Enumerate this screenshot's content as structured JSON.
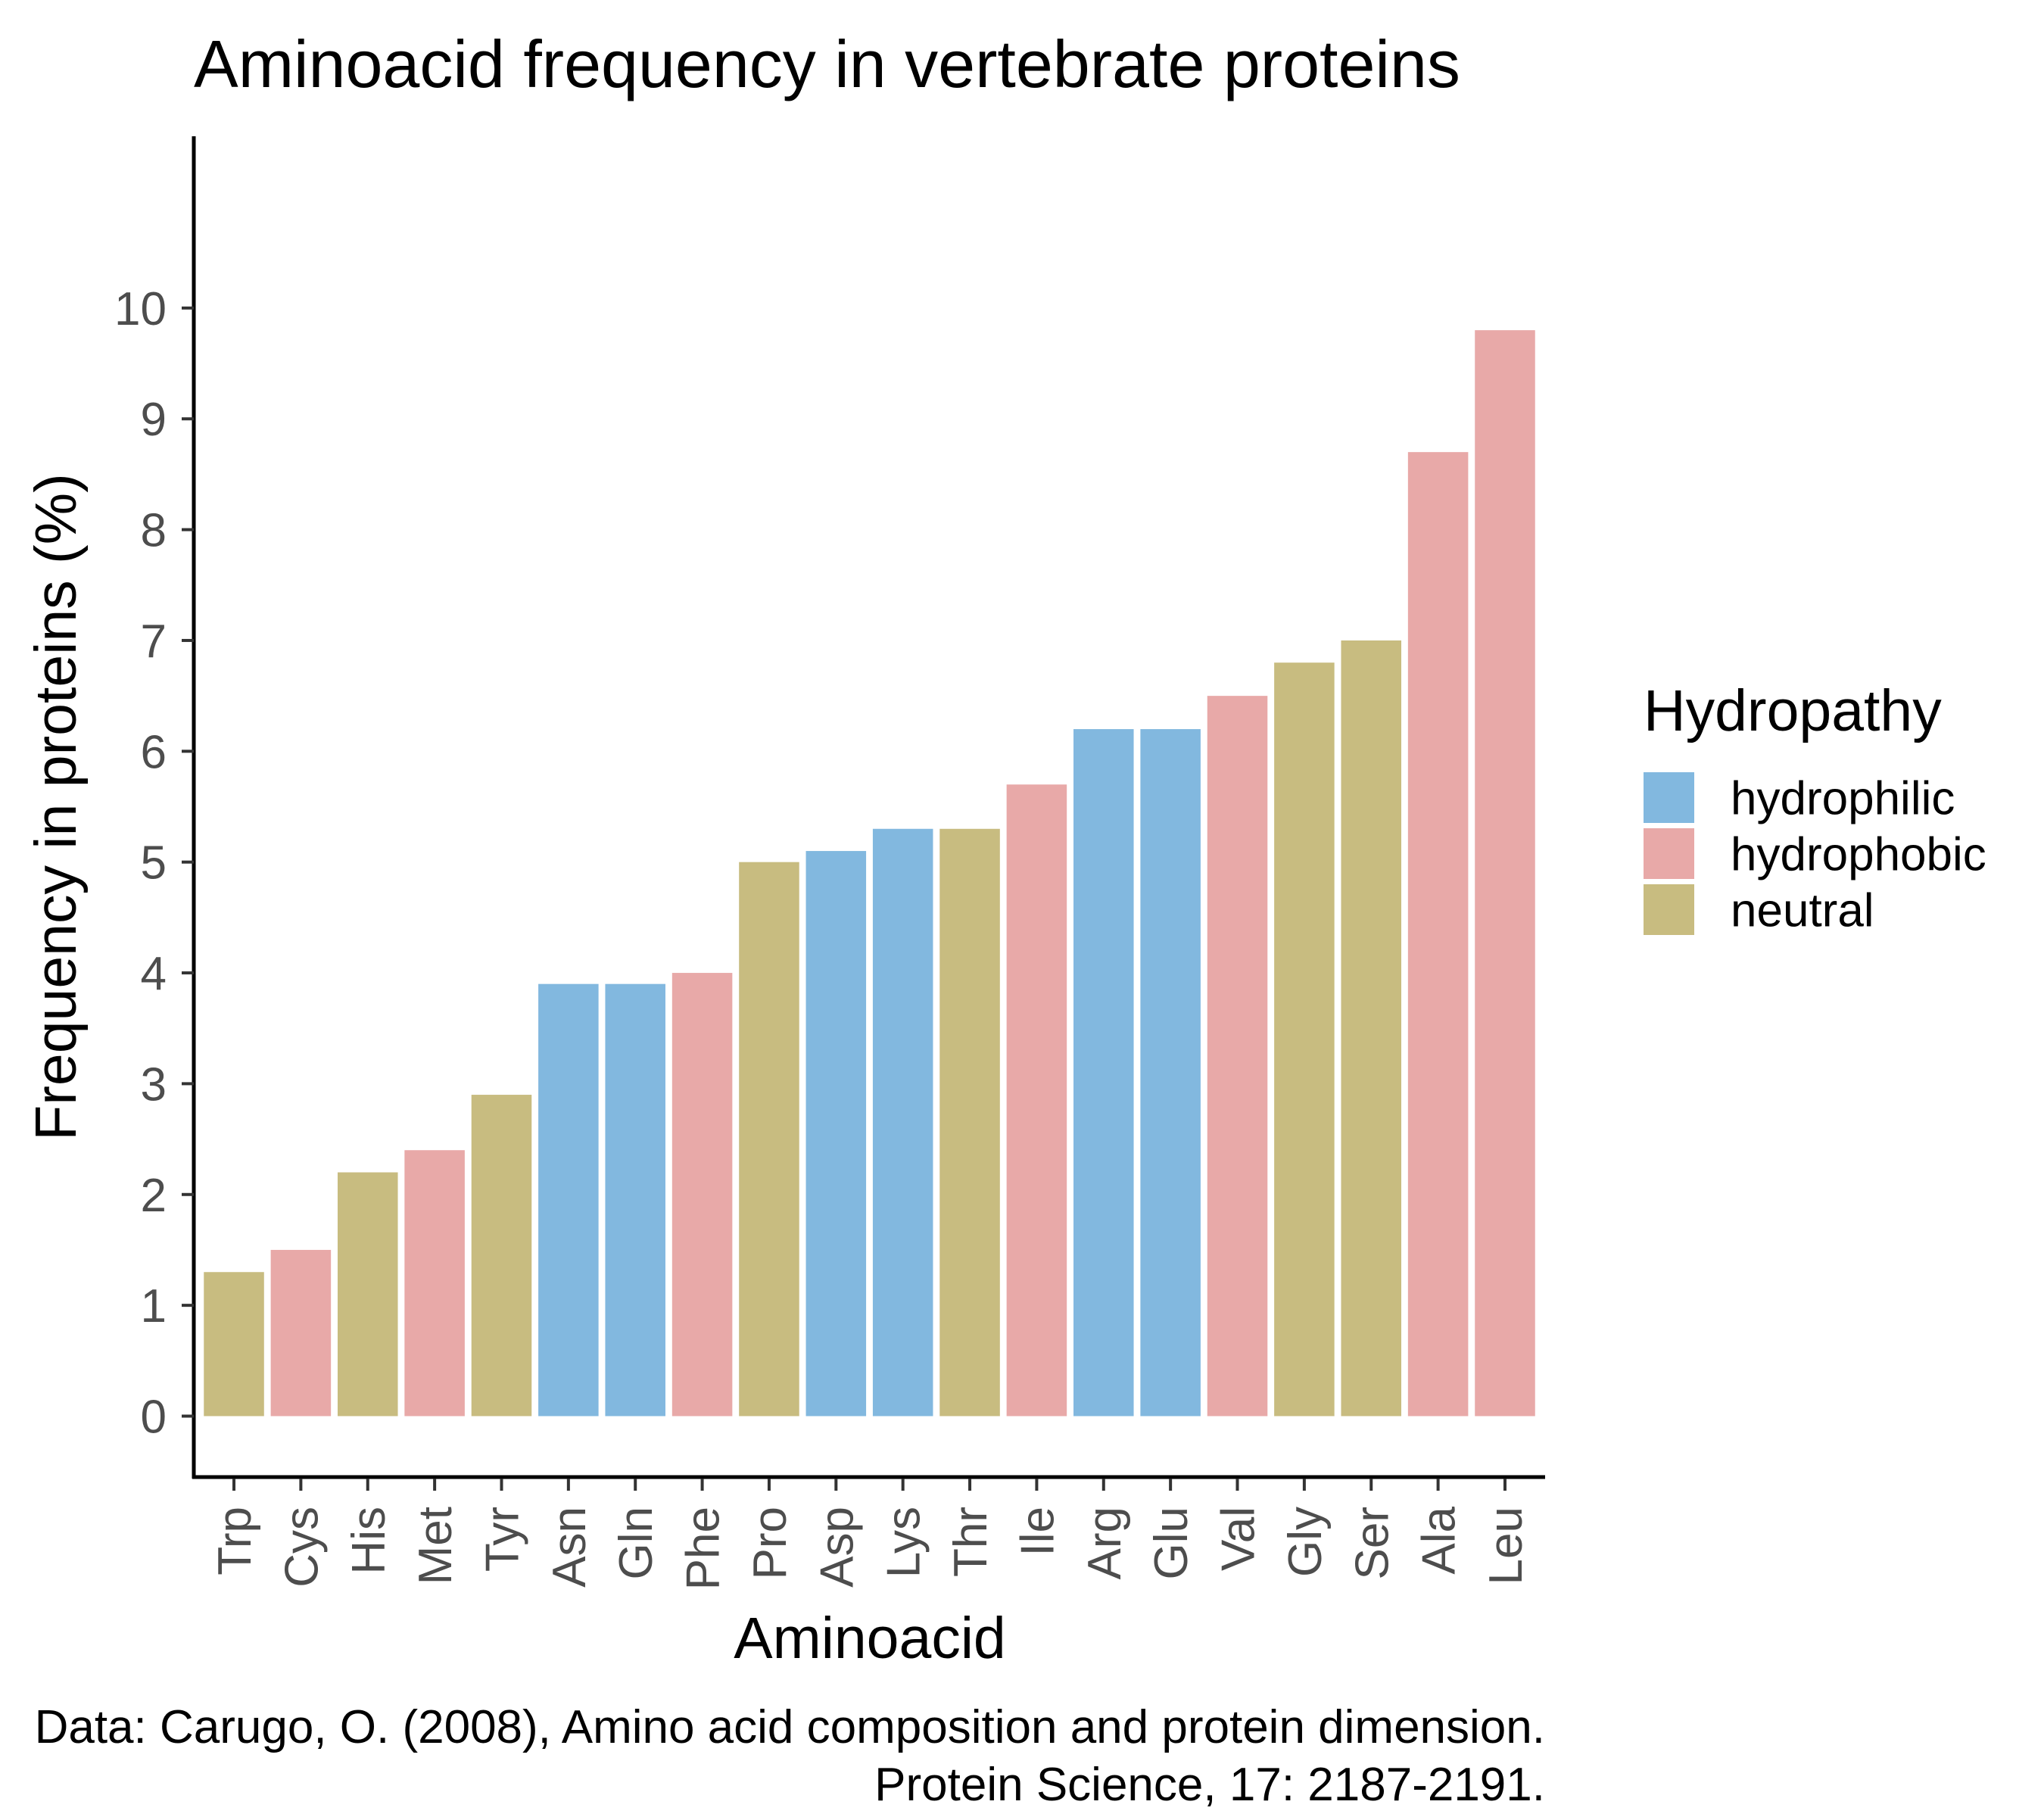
{
  "chart_data": {
    "type": "bar",
    "title": "Aminoacid frequency in vertebrate proteins",
    "xlabel": "Aminoacid",
    "ylabel": "Frequency in proteins (%)",
    "ylim": [
      -0.55,
      11.55
    ],
    "yticks": [
      0,
      1,
      2,
      3,
      4,
      5,
      6,
      7,
      8,
      9,
      10
    ],
    "grid": false,
    "categories": [
      "Trp",
      "Cys",
      "His",
      "Met",
      "Tyr",
      "Asn",
      "Gln",
      "Phe",
      "Pro",
      "Asp",
      "Lys",
      "Thr",
      "Ile",
      "Arg",
      "Glu",
      "Val",
      "Gly",
      "Ser",
      "Ala",
      "Leu"
    ],
    "values": [
      1.3,
      1.5,
      2.2,
      2.4,
      2.9,
      3.9,
      3.9,
      4.0,
      5.0,
      5.1,
      5.3,
      5.3,
      5.7,
      6.2,
      6.2,
      6.5,
      6.8,
      7.0,
      8.7,
      9.8
    ],
    "groups": [
      "neutral",
      "hydrophobic",
      "neutral",
      "hydrophobic",
      "neutral",
      "hydrophilic",
      "hydrophilic",
      "hydrophobic",
      "neutral",
      "hydrophilic",
      "hydrophilic",
      "neutral",
      "hydrophobic",
      "hydrophilic",
      "hydrophilic",
      "hydrophobic",
      "neutral",
      "neutral",
      "hydrophobic",
      "hydrophobic"
    ],
    "legend": {
      "title": "Hydropathy",
      "position": "right",
      "entries": [
        {
          "label": "hydrophilic",
          "color": "#82b8df"
        },
        {
          "label": "hydrophobic",
          "color": "#e8a9a8"
        },
        {
          "label": "neutral",
          "color": "#c8bc80"
        }
      ]
    },
    "caption": [
      "Data: Carugo, O. (2008), Amino acid composition and protein dimension.",
      "Protein Science, 17: 2187-2191."
    ]
  }
}
